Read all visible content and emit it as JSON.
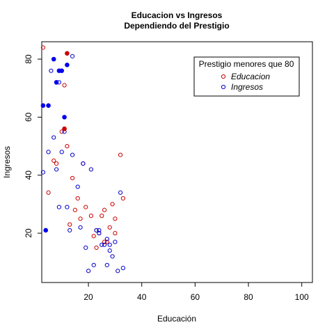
{
  "chart_data": {
    "type": "scatter",
    "title": "Educacion vs Ingresos",
    "subtitle": "Dependiendo del Prestigio",
    "xlabel": "Educación",
    "ylabel": "Ingresos",
    "xlim": [
      2.5,
      104
    ],
    "ylim": [
      3,
      86
    ],
    "x_ticks": [
      20,
      40,
      60,
      80,
      100
    ],
    "y_ticks": [
      20,
      40,
      60,
      80
    ],
    "grid": false,
    "legend": {
      "title": "Prestigio menores que 80",
      "placement": "top-right",
      "entries": [
        "Educacion",
        "Ingresos"
      ]
    },
    "series": [
      {
        "name": "Educacion",
        "color": "#cc0000",
        "marker": "open-circle",
        "points": [
          [
            3,
            84
          ],
          [
            11,
            71
          ],
          [
            10,
            55
          ],
          [
            12,
            50
          ],
          [
            7,
            45
          ],
          [
            8,
            44
          ],
          [
            18,
            44
          ],
          [
            14,
            39
          ],
          [
            5,
            34
          ],
          [
            16,
            32
          ],
          [
            33,
            32
          ],
          [
            29,
            30
          ],
          [
            19,
            29
          ],
          [
            26,
            28
          ],
          [
            15,
            28
          ],
          [
            21,
            26
          ],
          [
            25,
            26
          ],
          [
            30,
            25
          ],
          [
            17,
            25
          ],
          [
            13,
            23
          ],
          [
            28,
            22
          ],
          [
            23,
            21
          ],
          [
            30,
            20
          ],
          [
            24,
            20
          ],
          [
            22,
            19
          ],
          [
            26,
            17
          ],
          [
            27,
            17
          ],
          [
            23,
            15
          ],
          [
            32,
            47
          ]
        ]
      },
      {
        "name": "Ingresos",
        "color": "#0000cc",
        "marker": "open-circle",
        "points": [
          [
            14,
            81
          ],
          [
            6,
            76
          ],
          [
            9,
            72
          ],
          [
            11,
            55
          ],
          [
            7,
            53
          ],
          [
            5,
            48
          ],
          [
            10,
            48
          ],
          [
            14,
            47
          ],
          [
            18,
            44
          ],
          [
            21,
            42
          ],
          [
            3,
            41
          ],
          [
            8,
            42
          ],
          [
            16,
            36
          ],
          [
            32,
            34
          ],
          [
            9,
            29
          ],
          [
            12,
            29
          ],
          [
            17,
            22
          ],
          [
            13,
            21
          ],
          [
            23,
            21
          ],
          [
            24,
            21
          ],
          [
            27,
            18
          ],
          [
            28,
            16
          ],
          [
            26,
            16
          ],
          [
            24,
            20
          ],
          [
            25,
            16
          ],
          [
            19,
            15
          ],
          [
            28,
            14
          ],
          [
            29,
            12
          ],
          [
            27,
            9
          ],
          [
            22,
            9
          ],
          [
            20,
            7
          ],
          [
            31,
            7
          ],
          [
            33,
            8
          ],
          [
            30,
            17
          ]
        ]
      },
      {
        "name": "",
        "color": "#cc0000",
        "marker": "filled-circle",
        "points": [
          [
            12,
            82
          ],
          [
            11,
            56
          ]
        ]
      },
      {
        "name": "",
        "color": "#0000ee",
        "marker": "filled-circle",
        "points": [
          [
            7,
            80
          ],
          [
            12,
            78
          ],
          [
            9,
            76
          ],
          [
            10,
            76
          ],
          [
            8,
            72
          ],
          [
            3,
            64
          ],
          [
            5,
            64
          ],
          [
            11,
            60
          ],
          [
            4,
            21
          ]
        ]
      }
    ]
  }
}
